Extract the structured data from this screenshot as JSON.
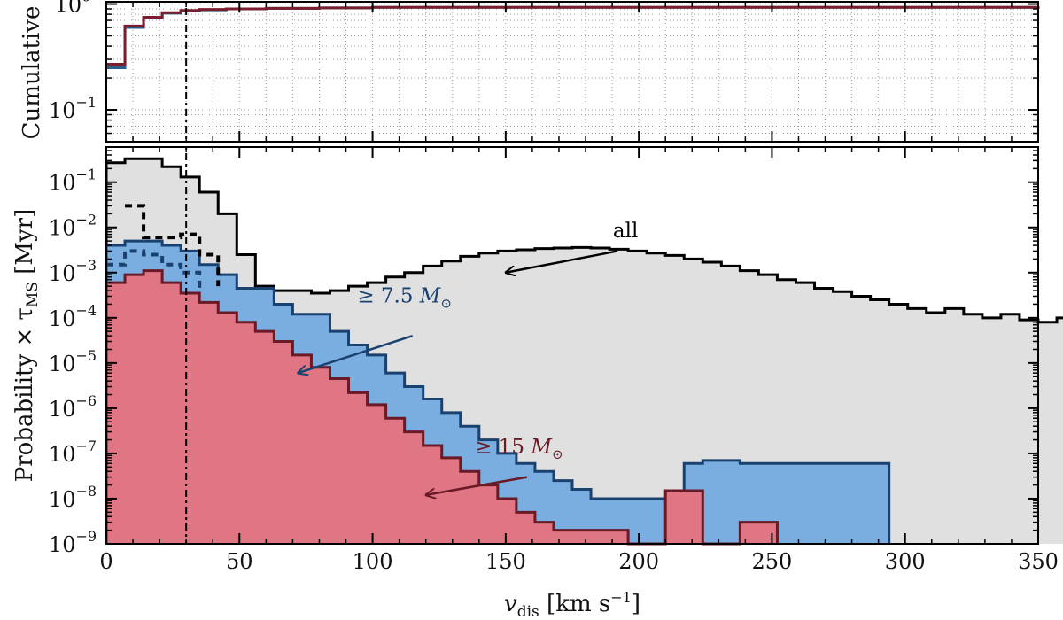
{
  "chart_data": [
    {
      "type": "line",
      "ylabel": "Cumulative",
      "yscale": "log",
      "ylim": [
        0.05,
        1.05
      ],
      "xlim": [
        0,
        350
      ],
      "grid": true,
      "y_ticks": [
        {
          "value": 1,
          "base": "10",
          "exp": "0"
        },
        {
          "value": 0.1,
          "base": "10",
          "exp": "−1"
        }
      ],
      "vline_x": 30,
      "series": [
        {
          "color": "#2a5d8f",
          "x": [
            0,
            7,
            14,
            21,
            28,
            35,
            45,
            60,
            80,
            100,
            350
          ],
          "values": [
            0.25,
            0.6,
            0.74,
            0.82,
            0.86,
            0.88,
            0.9,
            0.91,
            0.92,
            0.93,
            0.95
          ]
        },
        {
          "color": "#7a1e2e",
          "x": [
            0,
            7,
            14,
            21,
            28,
            35,
            45,
            60,
            80,
            100,
            350
          ],
          "values": [
            0.27,
            0.62,
            0.75,
            0.83,
            0.87,
            0.89,
            0.9,
            0.91,
            0.92,
            0.93,
            0.95
          ]
        }
      ]
    },
    {
      "type": "area",
      "xlabel_main": "v",
      "xlabel_sub": "dis",
      "xlabel_unit_open": " [km s",
      "xlabel_unit_exp": "−1",
      "xlabel_unit_close": "]",
      "ylabel_main": "Probability × τ",
      "ylabel_sub": "MS",
      "ylabel_unit": " [Myr]",
      "yscale": "log",
      "ylim": [
        1e-09,
        0.6
      ],
      "xlim": [
        0,
        350
      ],
      "x_ticks": [
        0,
        50,
        100,
        150,
        200,
        250,
        300,
        350
      ],
      "y_ticks": [
        {
          "value": 0.1,
          "base": "10",
          "exp": "−1"
        },
        {
          "value": 0.01,
          "base": "10",
          "exp": "−2"
        },
        {
          "value": 0.001,
          "base": "10",
          "exp": "−3"
        },
        {
          "value": 0.0001,
          "base": "10",
          "exp": "−4"
        },
        {
          "value": 1e-05,
          "base": "10",
          "exp": "−5"
        },
        {
          "value": 1e-06,
          "base": "10",
          "exp": "−6"
        },
        {
          "value": 1e-07,
          "base": "10",
          "exp": "−7"
        },
        {
          "value": 1e-08,
          "base": "10",
          "exp": "−8"
        },
        {
          "value": 1e-09,
          "base": "10",
          "exp": "−9"
        }
      ],
      "vline_x": 30,
      "bin_width": 3.5,
      "series": [
        {
          "key": "all",
          "fill": "#e0e0e0",
          "stroke": "#000000",
          "values": [
            0.27,
            0.27,
            0.33,
            0.33,
            0.33,
            0.33,
            0.22,
            0.22,
            0.13,
            0.13,
            0.06,
            0.06,
            0.02,
            0.02,
            0.0025,
            0.0025,
            0.0005,
            0.0005,
            0.0004,
            0.0004,
            0.0004,
            0.0004,
            0.00035,
            0.00035,
            0.0004,
            0.0004,
            0.0005,
            0.0005,
            0.0006,
            0.0006,
            0.0008,
            0.0008,
            0.001,
            0.001,
            0.0014,
            0.0014,
            0.0018,
            0.0018,
            0.0023,
            0.0023,
            0.0027,
            0.0027,
            0.003,
            0.003,
            0.0032,
            0.0032,
            0.0034,
            0.0034,
            0.0035,
            0.0035,
            0.0036,
            0.0036,
            0.0035,
            0.0035,
            0.0033,
            0.0033,
            0.003,
            0.003,
            0.0027,
            0.0027,
            0.0024,
            0.0024,
            0.002,
            0.002,
            0.0017,
            0.0017,
            0.0014,
            0.0014,
            0.0011,
            0.0011,
            0.0009,
            0.0009,
            0.0007,
            0.0007,
            0.0006,
            0.0006,
            0.00045,
            0.00045,
            0.00038,
            0.00038,
            0.0003,
            0.0003,
            0.00025,
            0.00025,
            0.0002,
            0.0002,
            0.00016,
            0.00016,
            0.00013,
            0.00013,
            0.00016,
            0.00016,
            0.00012,
            0.00012,
            0.0001,
            0.0001,
            0.00012,
            0.00012,
            9e-05,
            9e-05,
            8e-05,
            8e-05,
            0.0001,
            0.0001,
            8e-05,
            8e-05,
            9e-05,
            9e-05,
            7e-05,
            7e-05,
            6e-05,
            6e-05,
            8e-05,
            8e-05,
            3e-05,
            3e-05,
            5e-05,
            5e-05,
            4.5e-05,
            4.5e-05,
            4e-05,
            4e-05,
            3.5e-05,
            3.5e-05,
            4e-05,
            4e-05,
            3e-05,
            3e-05,
            3.5e-05,
            3.5e-05,
            3e-05,
            3e-05,
            3e-05,
            3e-05,
            3e-05,
            3e-05,
            3e-05,
            3e-05,
            3e-05,
            3e-05,
            3e-05,
            3e-05,
            3e-05,
            3e-05,
            3e-05,
            3e-05,
            3e-05,
            3e-05,
            3e-05,
            3e-05,
            3e-05,
            3e-05,
            3e-05,
            3e-05,
            3e-05,
            3e-05,
            3e-05,
            3e-05,
            3e-05,
            3e-05,
            3e-05,
            3e-05,
            3e-05,
            3e-05,
            3e-05,
            3e-05,
            3e-05,
            3e-05,
            3e-05,
            3e-05,
            3e-05,
            3e-05,
            3e-05,
            3e-05,
            3e-05,
            3e-05,
            3e-05,
            3e-05,
            3e-05,
            3e-05,
            3e-05,
            3e-05,
            3e-05,
            3e-05,
            3e-05,
            3e-05,
            3e-05,
            3e-05,
            3e-05,
            3e-05,
            3e-05,
            3e-05,
            1e-09,
            1e-09,
            1e-09,
            1e-09,
            1.5e-05,
            1.5e-05,
            1.5e-05,
            1.5e-05,
            1e-09,
            1e-09,
            1e-09,
            1e-09,
            2.5e-07,
            2.5e-07
          ]
        },
        {
          "key": "ge7.5",
          "fill": "#7aaee0",
          "stroke": "#1a4270",
          "values": [
            0.004,
            0.004,
            0.005,
            0.005,
            0.005,
            0.005,
            0.004,
            0.004,
            0.003,
            0.003,
            0.0015,
            0.0015,
            0.0009,
            0.0009,
            0.00045,
            0.00045,
            0.00045,
            0.00045,
            0.0002,
            0.0002,
            0.00012,
            0.00012,
            0.00012,
            0.00012,
            5e-05,
            5e-05,
            2.5e-05,
            2.5e-05,
            1.5e-05,
            1.5e-05,
            6e-06,
            6e-06,
            3e-06,
            3e-06,
            1.6e-06,
            1.6e-06,
            8e-07,
            8e-07,
            4e-07,
            4e-07,
            2e-07,
            2e-07,
            1e-07,
            1e-07,
            6e-08,
            6e-08,
            4e-08,
            4e-08,
            2.5e-08,
            2.5e-08,
            1.6e-08,
            1.6e-08,
            1e-08,
            1e-08,
            1e-08,
            1e-08,
            1e-08,
            1e-08,
            1e-08,
            1e-08,
            1e-08,
            1e-08,
            6e-08,
            6e-08,
            7e-08,
            7e-08,
            7e-08,
            7e-08,
            6e-08,
            6e-08,
            6e-08,
            6e-08,
            6e-08,
            6e-08,
            6e-08,
            6e-08,
            6e-08,
            6e-08,
            6e-08,
            6e-08,
            6e-08,
            6e-08,
            6e-08,
            6e-08
          ]
        },
        {
          "key": "ge15",
          "fill": "#e07684",
          "stroke": "#6a1a26",
          "values": [
            0.0006,
            0.0006,
            0.0009,
            0.0009,
            0.0011,
            0.0011,
            0.0006,
            0.0006,
            0.00035,
            0.00035,
            0.00022,
            0.00022,
            0.00013,
            0.00013,
            8e-05,
            8e-05,
            5e-05,
            5e-05,
            3e-05,
            3e-05,
            1.5e-05,
            1.5e-05,
            8e-06,
            8e-06,
            4.5e-06,
            4.5e-06,
            2.2e-06,
            2.2e-06,
            1.2e-06,
            1.2e-06,
            6e-07,
            6e-07,
            3e-07,
            3e-07,
            1.5e-07,
            1.5e-07,
            8e-08,
            8e-08,
            4e-08,
            4e-08,
            2e-08,
            2e-08,
            1e-08,
            1e-08,
            5e-09,
            5e-09,
            3e-09,
            3e-09,
            2e-09,
            2e-09,
            2e-09,
            2e-09,
            2e-09,
            2e-09,
            2e-09,
            2e-09,
            1e-09,
            1e-09,
            1e-09,
            1e-09,
            1.5e-08,
            1.5e-08,
            1.5e-08,
            1.5e-08,
            1e-09,
            1e-09,
            1e-09,
            1e-09,
            3e-09,
            3e-09,
            3e-09,
            3e-09
          ]
        }
      ],
      "dashed_series": [
        {
          "key": "all-dashed",
          "stroke": "#000000",
          "points": [
            [
              7,
              0.03
            ],
            [
              14,
              0.03
            ],
            [
              14,
              0.006
            ],
            [
              28,
              0.006
            ],
            [
              28,
              0.007
            ],
            [
              35,
              0.007
            ],
            [
              35,
              0.0025
            ],
            [
              42,
              0.0025
            ],
            [
              42,
              0.0005
            ]
          ]
        },
        {
          "key": "ge7.5-dashed",
          "stroke": "#1a4270",
          "points": [
            [
              0,
              0.0015
            ],
            [
              7,
              0.0015
            ],
            [
              7,
              0.003
            ],
            [
              14,
              0.003
            ],
            [
              14,
              0.0025
            ],
            [
              21,
              0.0025
            ],
            [
              21,
              0.0015
            ],
            [
              28,
              0.0015
            ],
            [
              28,
              0.001
            ],
            [
              35,
              0.001
            ],
            [
              35,
              0.00045
            ]
          ]
        }
      ],
      "annotations": [
        {
          "key": "all",
          "text": "all",
          "color": "#000000",
          "text_x": 195,
          "text_y": 0.006,
          "arrow_from_x": 192,
          "arrow_from_y": 0.003,
          "arrow_to_x": 150,
          "arrow_to_y": 0.001
        },
        {
          "key": "ge7.5",
          "prefix": "≥ 7.5 ",
          "mass": "M",
          "sun": "⊙",
          "color": "#1a4270",
          "text_x": 112,
          "text_y": 0.00022,
          "arrow_from_x": 115,
          "arrow_from_y": 4e-05,
          "arrow_to_x": 72,
          "arrow_to_y": 6e-06
        },
        {
          "key": "ge15",
          "prefix": "≥ 15 ",
          "mass": "M",
          "sun": "⊙",
          "color": "#6a1a26",
          "text_x": 155,
          "text_y": 1e-07,
          "arrow_from_x": 158,
          "arrow_from_y": 3e-08,
          "arrow_to_x": 120,
          "arrow_to_y": 1.2e-08
        }
      ]
    }
  ]
}
